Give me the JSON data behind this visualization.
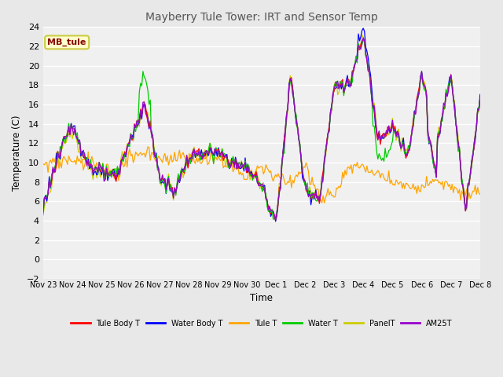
{
  "title": "Mayberry Tule Tower: IRT and Sensor Temp",
  "xlabel": "Time",
  "ylabel": "Temperature (C)",
  "ylim": [
    -2,
    24
  ],
  "yticks": [
    -2,
    0,
    2,
    4,
    6,
    8,
    10,
    12,
    14,
    16,
    18,
    20,
    22,
    24
  ],
  "xtick_labels": [
    "Nov 23",
    "Nov 24",
    "Nov 25",
    "Nov 26",
    "Nov 27",
    "Nov 28",
    "Nov 29",
    "Nov 30",
    "Dec 1",
    "Dec 2",
    "Dec 3",
    "Dec 4",
    "Dec 5",
    "Dec 6",
    "Dec 7",
    "Dec 8"
  ],
  "outer_bg": "#e8e8e8",
  "plot_bg": "#f0f0f0",
  "grid_color": "#ffffff",
  "legend_entries": [
    "Tule Body T",
    "Water Body T",
    "Tule T",
    "Water T",
    "PanelT",
    "AM25T"
  ],
  "legend_colors": [
    "#ff0000",
    "#0000ff",
    "#ffa500",
    "#00cc00",
    "#cccc00",
    "#9900cc"
  ],
  "annotation_text": "MB_tule",
  "annotation_color": "#880000",
  "annotation_bg": "#ffffcc",
  "annotation_border": "#cccc44"
}
